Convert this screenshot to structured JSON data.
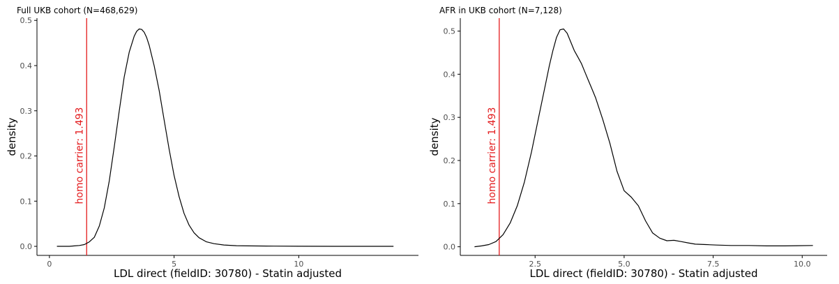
{
  "figure": {
    "colors": {
      "density": "#000000",
      "marker": "#e31a1c",
      "axis": "#000000",
      "tick_text": "#4d4d4d"
    }
  },
  "chart_data": [
    {
      "type": "line",
      "title": "Full UKB cohort (N=468,629)",
      "xlabel": "LDL direct (fieldID: 30780) - Statin adjusted",
      "ylabel": "density",
      "xlim": [
        -0.5,
        14.8
      ],
      "ylim": [
        -0.02,
        0.505
      ],
      "x_ticks": [
        0,
        5,
        10
      ],
      "x_tick_labels": [
        "0",
        "5",
        "10"
      ],
      "y_ticks": [
        0,
        0.1,
        0.2,
        0.3,
        0.4,
        0.5
      ],
      "y_tick_labels": [
        "0.0",
        "0.1",
        "0.2",
        "0.3",
        "0.4",
        "0.5"
      ],
      "grid": false,
      "series": [
        {
          "x": [
            0.3,
            0.8,
            1.0,
            1.2,
            1.4,
            1.6,
            1.8,
            2.0,
            2.2,
            2.4,
            2.6,
            2.8,
            3.0,
            3.2,
            3.4,
            3.5,
            3.6,
            3.7,
            3.8,
            3.9,
            4.0,
            4.2,
            4.4,
            4.6,
            4.8,
            5.0,
            5.2,
            5.4,
            5.6,
            5.8,
            6.0,
            6.3,
            6.6,
            7.0,
            7.5,
            8.0,
            9.0,
            10.0,
            11.5,
            13.8
          ],
          "y": [
            0.0,
            0.0,
            0.001,
            0.002,
            0.004,
            0.01,
            0.02,
            0.045,
            0.085,
            0.145,
            0.22,
            0.3,
            0.375,
            0.43,
            0.465,
            0.476,
            0.481,
            0.48,
            0.474,
            0.462,
            0.445,
            0.4,
            0.345,
            0.28,
            0.215,
            0.157,
            0.11,
            0.073,
            0.047,
            0.03,
            0.019,
            0.01,
            0.006,
            0.003,
            0.0015,
            0.001,
            0.0005,
            0.0003,
            0.0001,
            0.0
          ]
        }
      ],
      "annotations": [
        {
          "type": "vline",
          "x": 1.493,
          "label": "homo carrier: 1.493"
        }
      ]
    },
    {
      "type": "line",
      "title": "AFR in UKB cohort (N=7,128)",
      "xlabel": "LDL direct (fieldID: 30780) - Statin adjusted",
      "ylabel": "density",
      "xlim": [
        0.4,
        10.7
      ],
      "ylim": [
        -0.02,
        0.53
      ],
      "x_ticks": [
        2.5,
        5.0,
        7.5,
        10.0
      ],
      "x_tick_labels": [
        "2.5",
        "5.0",
        "7.5",
        "10.0"
      ],
      "y_ticks": [
        0,
        0.1,
        0.2,
        0.3,
        0.4,
        0.5
      ],
      "y_tick_labels": [
        "0.0",
        "0.1",
        "0.2",
        "0.3",
        "0.4",
        "0.5"
      ],
      "grid": false,
      "series": [
        {
          "x": [
            0.8,
            1.0,
            1.2,
            1.4,
            1.6,
            1.8,
            2.0,
            2.2,
            2.4,
            2.6,
            2.8,
            2.9,
            3.0,
            3.1,
            3.2,
            3.3,
            3.4,
            3.5,
            3.6,
            3.7,
            3.8,
            3.9,
            4.0,
            4.1,
            4.2,
            4.4,
            4.6,
            4.8,
            5.0,
            5.2,
            5.4,
            5.6,
            5.8,
            6.0,
            6.2,
            6.4,
            6.6,
            6.8,
            7.0,
            7.3,
            7.6,
            8.0,
            8.5,
            9.0,
            9.5,
            10.3
          ],
          "y": [
            0.0,
            0.002,
            0.005,
            0.012,
            0.028,
            0.055,
            0.095,
            0.15,
            0.22,
            0.3,
            0.38,
            0.42,
            0.455,
            0.485,
            0.503,
            0.505,
            0.495,
            0.475,
            0.455,
            0.44,
            0.425,
            0.405,
            0.385,
            0.365,
            0.345,
            0.295,
            0.24,
            0.175,
            0.13,
            0.115,
            0.095,
            0.06,
            0.032,
            0.02,
            0.014,
            0.015,
            0.012,
            0.009,
            0.006,
            0.005,
            0.004,
            0.003,
            0.003,
            0.002,
            0.002,
            0.003
          ]
        }
      ],
      "annotations": [
        {
          "type": "vline",
          "x": 1.493,
          "label": "homo carrier: 1.493"
        }
      ]
    }
  ]
}
